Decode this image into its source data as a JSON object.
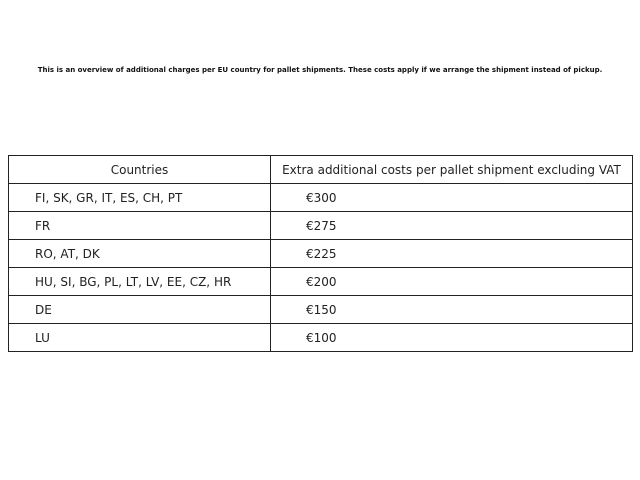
{
  "note": "This is an overview of additional charges per EU country for pallet shipments. These costs apply if we arrange the shipment instead of pickup.",
  "table": {
    "headers": [
      "Countries",
      "Extra additional costs per pallet shipment excluding VAT"
    ],
    "rows": [
      [
        "FI, SK, GR, IT, ES, CH, PT",
        "€300"
      ],
      [
        "FR",
        "€275"
      ],
      [
        "RO, AT, DK",
        "€225"
      ],
      [
        "HU, SI, BG, PL, LT, LV, EE, CZ, HR",
        "€200"
      ],
      [
        "DE",
        "€150"
      ],
      [
        "LU",
        "€100"
      ]
    ]
  }
}
